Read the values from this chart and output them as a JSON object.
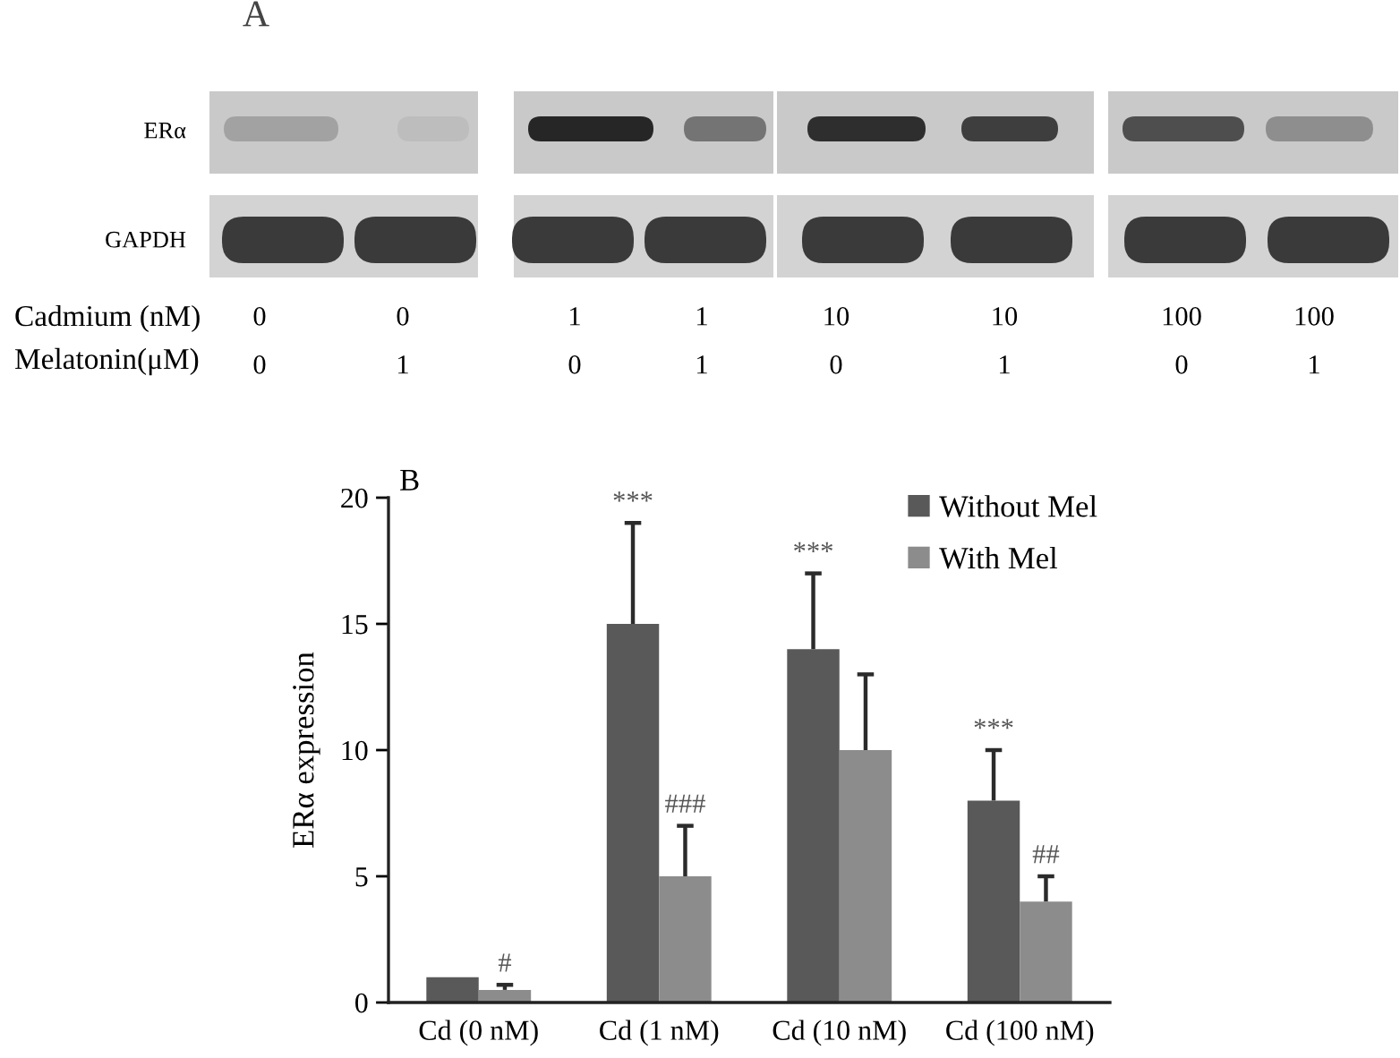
{
  "chart_data": [
    {
      "type": "other",
      "title": "A",
      "annotations": [
        "ERα",
        "GAPDH",
        "Cadmium (nM)",
        "Melatonin(μM)",
        "0",
        "0",
        "1",
        "1",
        "10",
        "10",
        "100",
        "100",
        "0",
        "1",
        "0",
        "1",
        "0",
        "1",
        "0",
        "1"
      ]
    },
    {
      "type": "bar",
      "title": "B",
      "ylabel": "ERα expression",
      "categories": [
        "Cd (0 nM)",
        "Cd (1 nM)",
        "Cd (10 nM)",
        "Cd (100 nM)"
      ],
      "series": [
        {
          "name": "Without Mel",
          "color": "#595959",
          "values": [
            1,
            15,
            14,
            8
          ],
          "errors": [
            null,
            [
              15,
              19
            ],
            [
              14,
              17
            ],
            [
              8,
              10
            ]
          ]
        },
        {
          "name": "With Mel",
          "color": "#8c8c8c",
          "values": [
            0.5,
            5,
            10,
            4
          ],
          "errors": [
            [
              0.5,
              0.7
            ],
            [
              5,
              7
            ],
            [
              10,
              13
            ],
            [
              4,
              5
            ]
          ]
        }
      ],
      "annotations": [
        {
          "text": "#",
          "x": "Cd (0 nM)",
          "y": 0.7
        },
        "***",
        {
          "text": "###",
          "x": "Cd (1 nM)",
          "y": 7
        },
        "***",
        "***",
        {
          "text": "##",
          "x": "Cd (100 nM)",
          "y": 5
        }
      ],
      "ylim": [
        0,
        20
      ],
      "yticks": [
        0,
        5,
        10,
        15,
        20
      ],
      "grid": false,
      "legend": "top right"
    }
  ]
}
